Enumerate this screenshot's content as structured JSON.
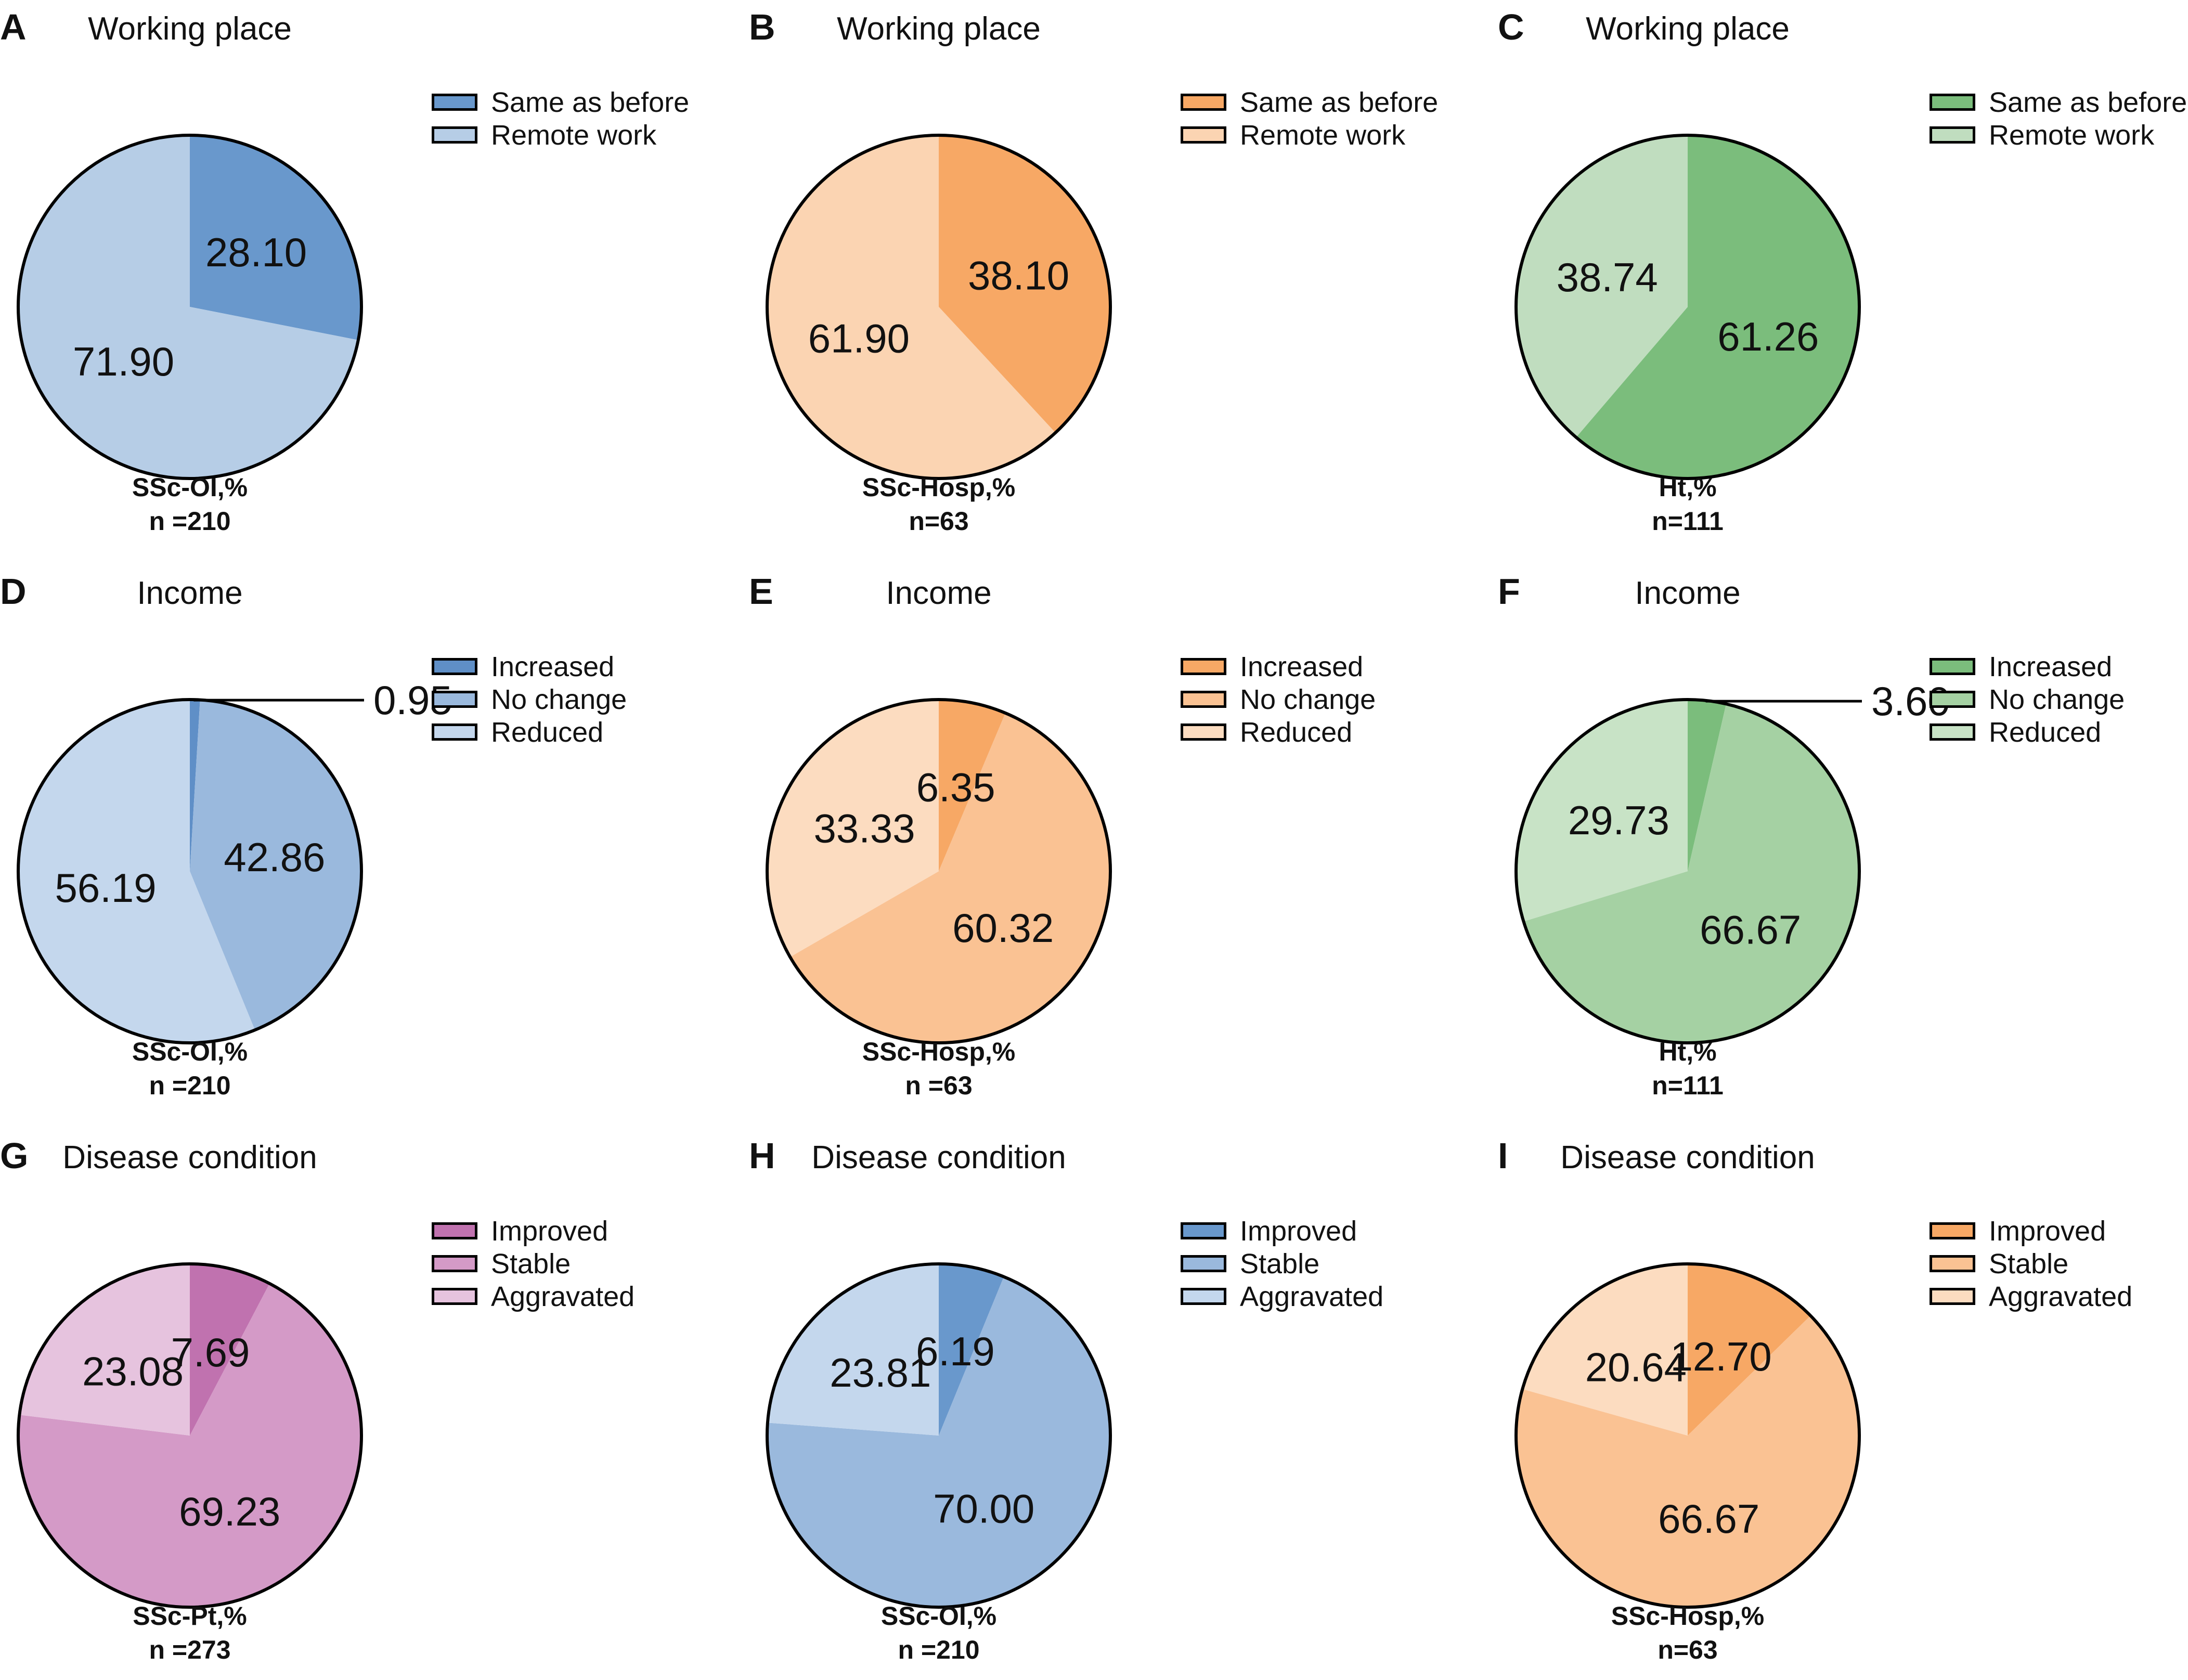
{
  "chart_data": [
    {
      "panel": "A",
      "type": "pie",
      "title": "Working place",
      "caption": [
        "SSc-OI,%",
        "n =210"
      ],
      "slices": [
        {
          "label": "Same as before",
          "value": 28.1,
          "display": "28.10",
          "color": "#6998cc"
        },
        {
          "label": "Remote work",
          "value": 71.9,
          "display": "71.90",
          "color": "#b6cde6"
        }
      ]
    },
    {
      "panel": "B",
      "type": "pie",
      "title": "Working place",
      "caption": [
        "SSc-Hosp,%",
        "n=63"
      ],
      "slices": [
        {
          "label": "Same as before",
          "value": 38.1,
          "display": "38.10",
          "color": "#f7a865"
        },
        {
          "label": "Remote work",
          "value": 61.9,
          "display": "61.90",
          "color": "#fbd4b2"
        }
      ]
    },
    {
      "panel": "C",
      "type": "pie",
      "title": "Working place",
      "caption": [
        "Ht,%",
        "n=111"
      ],
      "slices": [
        {
          "label": "Same as before",
          "value": 61.26,
          "display": "61.26",
          "color": "#7bbd7c"
        },
        {
          "label": "Remote work",
          "value": 38.74,
          "display": "38.74",
          "color": "#c0ddbf"
        }
      ]
    },
    {
      "panel": "D",
      "type": "pie",
      "title": "Income",
      "caption": [
        "SSc-OI,%",
        "n =210"
      ],
      "slices": [
        {
          "label": "Increased",
          "value": 0.95,
          "display": "0.95",
          "color": "#5f8fc7"
        },
        {
          "label": "No change",
          "value": 42.86,
          "display": "42.86",
          "color": "#9ab9dd"
        },
        {
          "label": "Reduced",
          "value": 56.19,
          "display": "56.19",
          "color": "#c4d7ed"
        }
      ]
    },
    {
      "panel": "E",
      "type": "pie",
      "title": "Income",
      "caption": [
        "SSc-Hosp,%",
        "n =63"
      ],
      "slices": [
        {
          "label": "Increased",
          "value": 6.35,
          "display": "6.35",
          "color": "#f7a865"
        },
        {
          "label": "No change",
          "value": 60.32,
          "display": "60.32",
          "color": "#fac293"
        },
        {
          "label": "Reduced",
          "value": 33.33,
          "display": "33.33",
          "color": "#fcdcc0"
        }
      ]
    },
    {
      "panel": "F",
      "type": "pie",
      "title": "Income",
      "caption": [
        "Ht,%",
        "n=111"
      ],
      "slices": [
        {
          "label": "Increased",
          "value": 3.6,
          "display": "3.60",
          "color": "#7bbd7c"
        },
        {
          "label": "No change",
          "value": 66.67,
          "display": "66.67",
          "color": "#a5d1a3"
        },
        {
          "label": "Reduced",
          "value": 29.73,
          "display": "29.73",
          "color": "#c8e3c6"
        }
      ]
    },
    {
      "panel": "G",
      "type": "pie",
      "title": "Disease condition",
      "caption": [
        "SSc-Pt,%",
        "n =273"
      ],
      "slices": [
        {
          "label": "Improved",
          "value": 7.69,
          "display": "7.69",
          "color": "#c072af"
        },
        {
          "label": "Stable",
          "value": 69.23,
          "display": "69.23",
          "color": "#d49ac7"
        },
        {
          "label": "Aggravated",
          "value": 23.08,
          "display": "23.08",
          "color": "#e6c3de"
        }
      ]
    },
    {
      "panel": "H",
      "type": "pie",
      "title": "Disease condition",
      "caption": [
        "SSc-OI,%",
        "n =210"
      ],
      "slices": [
        {
          "label": "Improved",
          "value": 6.19,
          "display": "6.19",
          "color": "#6998cc"
        },
        {
          "label": "Stable",
          "value": 70.0,
          "display": "70.00",
          "color": "#9ab9dd"
        },
        {
          "label": "Aggravated",
          "value": 23.81,
          "display": "23.81",
          "color": "#c4d7ed"
        }
      ]
    },
    {
      "panel": "I",
      "type": "pie",
      "title": "Disease condition",
      "caption": [
        "SSc-Hosp,%",
        "n=63"
      ],
      "slices": [
        {
          "label": "Improved",
          "value": 12.7,
          "display": "12.70",
          "color": "#f7a865"
        },
        {
          "label": "Stable",
          "value": 66.67,
          "display": "66.67",
          "color": "#fac293"
        },
        {
          "label": "Aggravated",
          "value": 20.64,
          "display": "20.64",
          "color": "#fcdcc0"
        }
      ]
    }
  ]
}
